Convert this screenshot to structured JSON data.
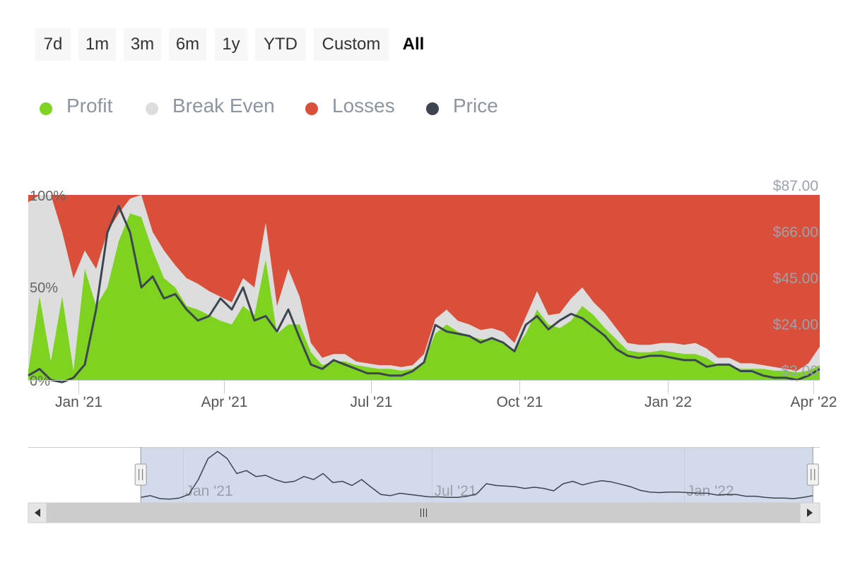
{
  "range_selector": {
    "buttons": [
      "7d",
      "1m",
      "3m",
      "6m",
      "1y",
      "YTD",
      "Custom",
      "All"
    ],
    "selected": "All"
  },
  "legend": [
    {
      "label": "Profit",
      "color": "#7ed321"
    },
    {
      "label": "Break Even",
      "color": "#dddddd"
    },
    {
      "label": "Losses",
      "color": "#d94f3a"
    },
    {
      "label": "Price",
      "color": "#3d4650"
    }
  ],
  "colors": {
    "profit": "#7ed321",
    "break_even": "#dddddd",
    "losses": "#d94f3a",
    "price": "#3d4650",
    "navigator_mask": "#d2dbec"
  },
  "chart_data": {
    "type": "area",
    "title": "",
    "x_unit": "date",
    "x": [
      "2020-12-01",
      "2020-12-08",
      "2020-12-15",
      "2020-12-22",
      "2020-12-29",
      "2021-01-05",
      "2021-01-12",
      "2021-01-19",
      "2021-01-26",
      "2021-02-02",
      "2021-02-09",
      "2021-02-16",
      "2021-02-23",
      "2021-03-02",
      "2021-03-09",
      "2021-03-16",
      "2021-03-23",
      "2021-03-30",
      "2021-04-06",
      "2021-04-13",
      "2021-04-20",
      "2021-04-27",
      "2021-05-04",
      "2021-05-11",
      "2021-05-18",
      "2021-05-25",
      "2021-06-01",
      "2021-06-08",
      "2021-06-15",
      "2021-06-22",
      "2021-06-29",
      "2021-07-06",
      "2021-07-13",
      "2021-07-20",
      "2021-07-27",
      "2021-08-03",
      "2021-08-10",
      "2021-08-17",
      "2021-08-24",
      "2021-08-31",
      "2021-09-07",
      "2021-09-14",
      "2021-09-21",
      "2021-09-28",
      "2021-10-05",
      "2021-10-12",
      "2021-10-19",
      "2021-10-26",
      "2021-11-02",
      "2021-11-09",
      "2021-11-16",
      "2021-11-23",
      "2021-11-30",
      "2021-12-07",
      "2021-12-14",
      "2021-12-21",
      "2021-12-28",
      "2022-01-04",
      "2022-01-11",
      "2022-01-18",
      "2022-01-25",
      "2022-02-01",
      "2022-02-08",
      "2022-02-15",
      "2022-02-22",
      "2022-03-01",
      "2022-03-08",
      "2022-03-15",
      "2022-03-22",
      "2022-03-29",
      "2022-04-05"
    ],
    "series": [
      {
        "name": "Profit",
        "unit": "%",
        "values": [
          5,
          45,
          10,
          45,
          5,
          60,
          40,
          50,
          75,
          90,
          88,
          70,
          55,
          50,
          40,
          38,
          35,
          32,
          30,
          40,
          35,
          65,
          25,
          30,
          30,
          15,
          8,
          10,
          10,
          8,
          7,
          6,
          6,
          5,
          6,
          10,
          25,
          30,
          26,
          24,
          22,
          22,
          20,
          16,
          25,
          38,
          30,
          28,
          32,
          40,
          35,
          28,
          22,
          16,
          15,
          15,
          16,
          15,
          14,
          14,
          12,
          8,
          8,
          6,
          6,
          6,
          5,
          5,
          4,
          5,
          8
        ]
      },
      {
        "name": "Break Even",
        "unit": "%",
        "values": [
          96,
          100,
          100,
          80,
          55,
          70,
          60,
          80,
          90,
          98,
          100,
          80,
          70,
          62,
          55,
          52,
          48,
          45,
          42,
          55,
          50,
          85,
          40,
          60,
          45,
          20,
          12,
          14,
          14,
          10,
          9,
          8,
          8,
          7,
          8,
          14,
          33,
          38,
          32,
          30,
          27,
          28,
          26,
          20,
          34,
          48,
          35,
          36,
          44,
          50,
          42,
          36,
          28,
          20,
          19,
          19,
          20,
          20,
          19,
          20,
          17,
          12,
          12,
          9,
          9,
          8,
          7,
          6,
          5,
          9,
          18
        ]
      },
      {
        "name": "Losses",
        "unit": "%",
        "values": [
          100,
          100,
          100,
          100,
          100,
          100,
          100,
          100,
          100,
          100,
          100,
          100,
          100,
          100,
          100,
          100,
          100,
          100,
          100,
          100,
          100,
          100,
          100,
          100,
          100,
          100,
          100,
          100,
          100,
          100,
          100,
          100,
          100,
          100,
          100,
          100,
          100,
          100,
          100,
          100,
          100,
          100,
          100,
          100,
          100,
          100,
          100,
          100,
          100,
          100,
          100,
          100,
          100,
          100,
          100,
          100,
          100,
          100,
          100,
          100,
          100,
          100,
          100,
          100,
          100,
          100,
          100,
          100,
          100,
          100,
          100
        ]
      },
      {
        "name": "Price",
        "unit": "$",
        "values": [
          5,
          8,
          3,
          2,
          4,
          10,
          35,
          70,
          82,
          70,
          45,
          50,
          40,
          42,
          35,
          30,
          32,
          40,
          35,
          45,
          30,
          32,
          25,
          35,
          22,
          10,
          8,
          12,
          10,
          8,
          6,
          6,
          5,
          5,
          7,
          11,
          28,
          25,
          24,
          23,
          20,
          22,
          20,
          16,
          28,
          32,
          26,
          30,
          33,
          31,
          27,
          23,
          17,
          14,
          13,
          14,
          14,
          13,
          12,
          12,
          9,
          10,
          10,
          7,
          7,
          5,
          4,
          4,
          3,
          5,
          8
        ]
      }
    ],
    "y_left": {
      "ticks": [
        "0%",
        "50%",
        "100%"
      ],
      "range": [
        0,
        100
      ]
    },
    "y_right": {
      "ticks": [
        "$3.00",
        "$24.00",
        "$45.00",
        "$66.00",
        "$87.00"
      ],
      "range": [
        3,
        87
      ]
    },
    "x_ticks": [
      {
        "label": "Jan '21",
        "date": "2021-01-01"
      },
      {
        "label": "Apr '21",
        "date": "2021-04-01"
      },
      {
        "label": "Jul '21",
        "date": "2021-07-01"
      },
      {
        "label": "Oct '21",
        "date": "2021-10-01"
      },
      {
        "label": "Jan '22",
        "date": "2022-01-01"
      },
      {
        "label": "Apr '22",
        "date": "2022-04-01"
      }
    ],
    "navigator": {
      "ticks": [
        {
          "label": "Jan '21",
          "date": "2021-01-01"
        },
        {
          "label": "Jul '21",
          "date": "2021-07-01"
        },
        {
          "label": "Jan '22",
          "date": "2022-01-01"
        }
      ],
      "selected_range": [
        "2020-12-01",
        "2022-04-05"
      ]
    },
    "grid": false,
    "legend_position": "top-left"
  }
}
